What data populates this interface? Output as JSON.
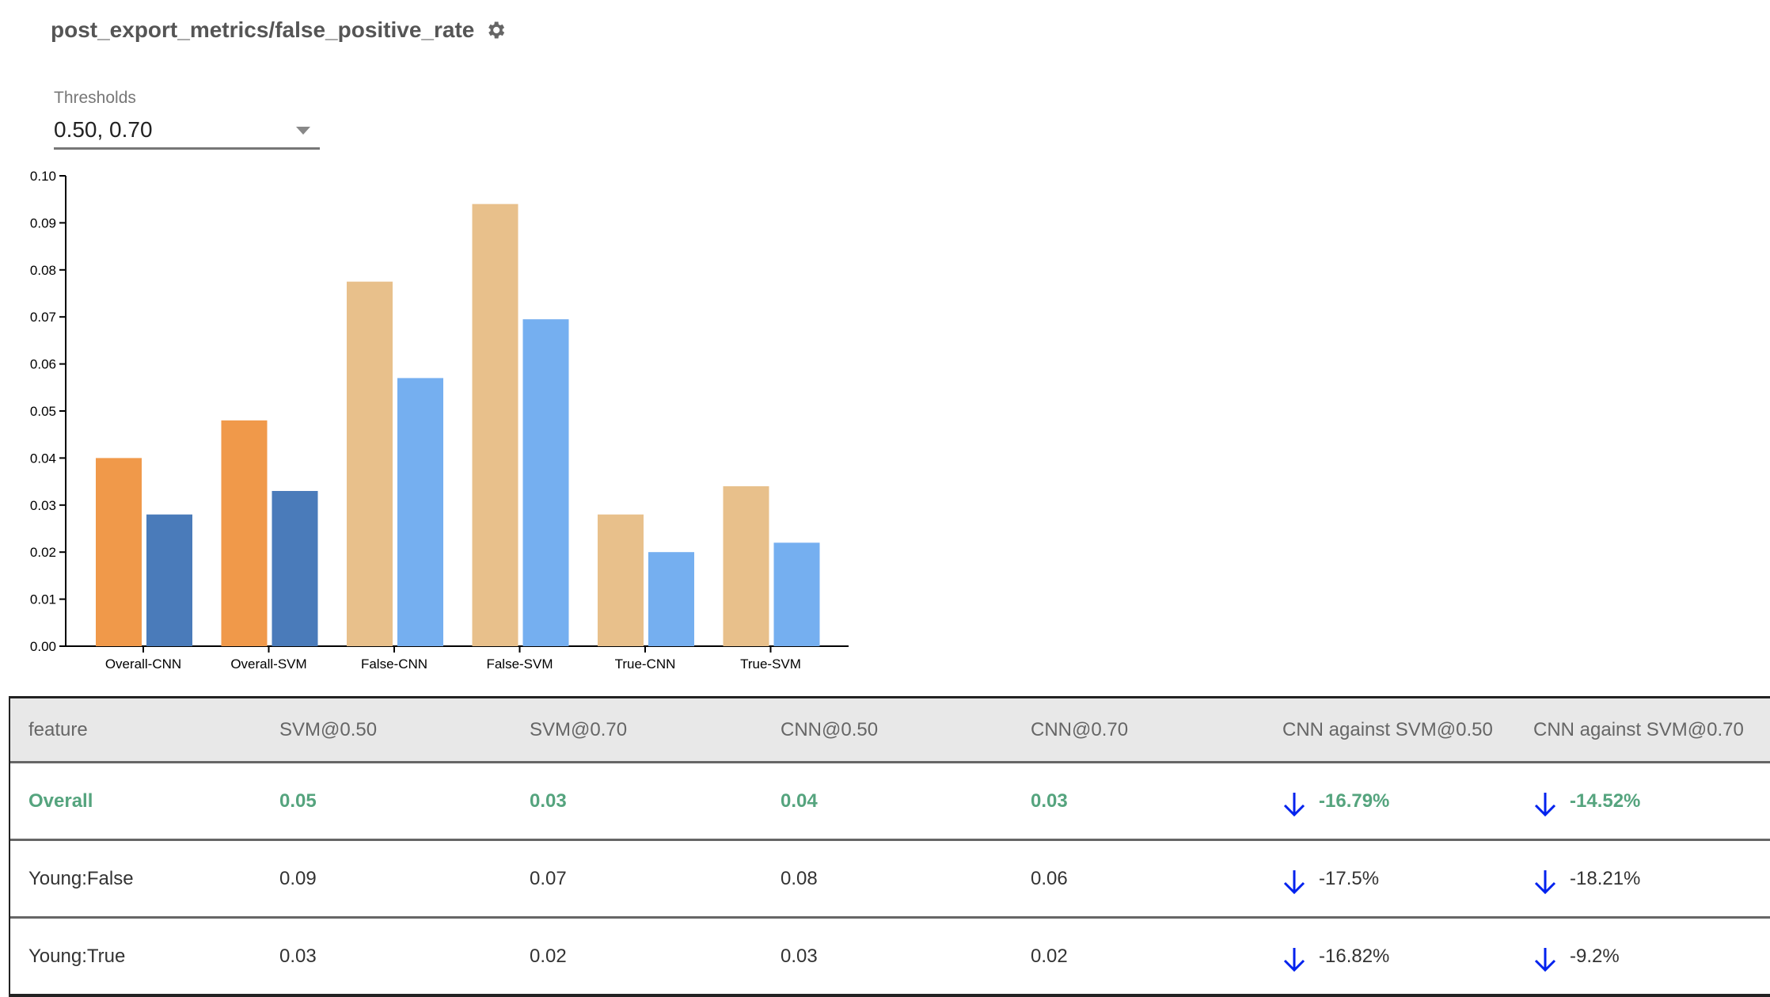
{
  "header": {
    "title": "post_export_metrics/false_positive_rate",
    "settings_icon": "gear-icon"
  },
  "thresholds": {
    "label": "Thresholds",
    "value": "0.50, 0.70"
  },
  "chart_data": {
    "type": "bar",
    "categories": [
      "Overall-CNN",
      "Overall-SVM",
      "False-CNN",
      "False-SVM",
      "True-CNN",
      "True-SVM"
    ],
    "series": [
      {
        "values": [
          0.04,
          0.048,
          0.0775,
          0.094,
          0.028,
          0.034
        ]
      },
      {
        "values": [
          0.028,
          0.033,
          0.057,
          0.0695,
          0.02,
          0.022
        ]
      }
    ],
    "bar_colors": [
      [
        "#f0994a",
        "#4a7bba"
      ],
      [
        "#f0994a",
        "#4a7bba"
      ],
      [
        "#e8c08b",
        "#75aff0"
      ],
      [
        "#e8c08b",
        "#75aff0"
      ],
      [
        "#e8c08b",
        "#75aff0"
      ],
      [
        "#e8c08b",
        "#75aff0"
      ]
    ],
    "yticks": [
      "0.00",
      "0.01",
      "0.02",
      "0.03",
      "0.04",
      "0.05",
      "0.06",
      "0.07",
      "0.08",
      "0.09",
      "0.10"
    ],
    "ylim": [
      0,
      0.1
    ],
    "grid": false
  },
  "table": {
    "columns": [
      "feature",
      "SVM@0.50",
      "SVM@0.70",
      "CNN@0.50",
      "CNN@0.70",
      "CNN against SVM@0.50",
      "CNN against SVM@0.70"
    ],
    "rows": [
      {
        "cells": [
          "Overall",
          "0.05",
          "0.03",
          "0.04",
          "0.03",
          "-16.79%",
          "-14.52%"
        ],
        "highlight": true
      },
      {
        "cells": [
          "Young:False",
          "0.09",
          "0.07",
          "0.08",
          "0.06",
          "-17.5%",
          "-18.21%"
        ],
        "highlight": false
      },
      {
        "cells": [
          "Young:True",
          "0.03",
          "0.02",
          "0.03",
          "0.02",
          "-16.82%",
          "-9.2%"
        ],
        "highlight": false
      }
    ],
    "highlight_color": "#55a47e",
    "arrow_color": "#0022ee",
    "arrow_icon": "arrow-down-icon"
  }
}
